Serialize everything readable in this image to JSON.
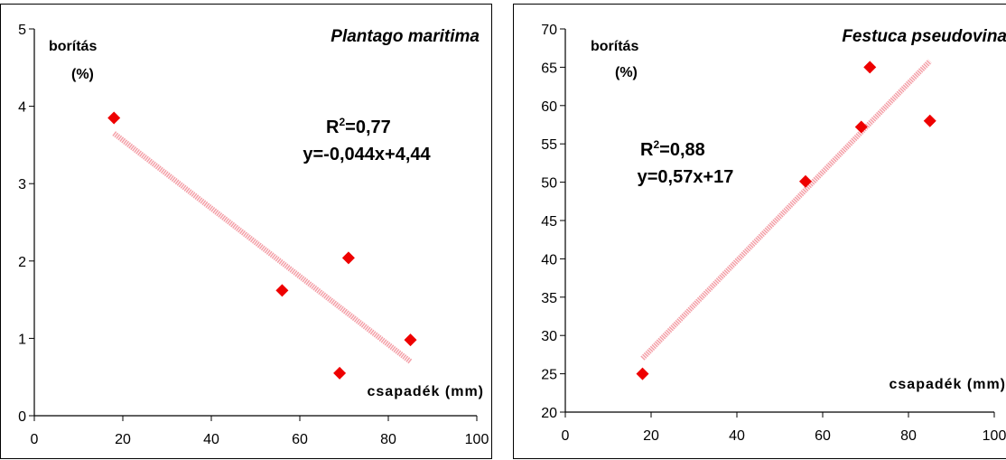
{
  "chart_data": [
    {
      "type": "scatter",
      "title": "Plantago maritima",
      "ylabel_line1": "borítás",
      "ylabel_line2": "(%)",
      "xlabel": "csapadék (mm)",
      "xlim": [
        0,
        100
      ],
      "ylim": [
        0,
        5
      ],
      "xticks": [
        0,
        20,
        40,
        60,
        80,
        100
      ],
      "yticks": [
        0,
        1,
        2,
        3,
        4,
        5
      ],
      "points": {
        "x": [
          18,
          56,
          69,
          71,
          85
        ],
        "y": [
          3.85,
          1.62,
          0.55,
          2.04,
          0.98
        ]
      },
      "trendline": {
        "x": [
          18,
          85
        ],
        "y": [
          3.65,
          0.7
        ]
      },
      "annotation_r2": "R",
      "annotation_r2_value": "=0,77",
      "annotation_eq": "y=-0,044x+4,44",
      "grid": false,
      "colors": {
        "marker": "#ee0000",
        "trend": "#f4a0a8"
      }
    },
    {
      "type": "scatter",
      "title": "Festuca pseudovina",
      "ylabel_line1": "borítás",
      "ylabel_line2": "(%)",
      "xlabel": "csapadék (mm)",
      "xlim": [
        0,
        100
      ],
      "ylim": [
        20,
        70
      ],
      "xticks": [
        0,
        20,
        40,
        60,
        80,
        100
      ],
      "yticks": [
        20,
        25,
        30,
        35,
        40,
        45,
        50,
        55,
        60,
        65,
        70
      ],
      "points": {
        "x": [
          18,
          56,
          69,
          71,
          85
        ],
        "y": [
          25,
          50.1,
          57.2,
          65,
          58
        ]
      },
      "trendline": {
        "x": [
          18,
          85
        ],
        "y": [
          27,
          65.8
        ]
      },
      "annotation_r2": "R",
      "annotation_r2_value": "=0,88",
      "annotation_eq": "y=0,57x+17",
      "grid": false,
      "colors": {
        "marker": "#ee0000",
        "trend": "#f4a0a8"
      }
    }
  ]
}
